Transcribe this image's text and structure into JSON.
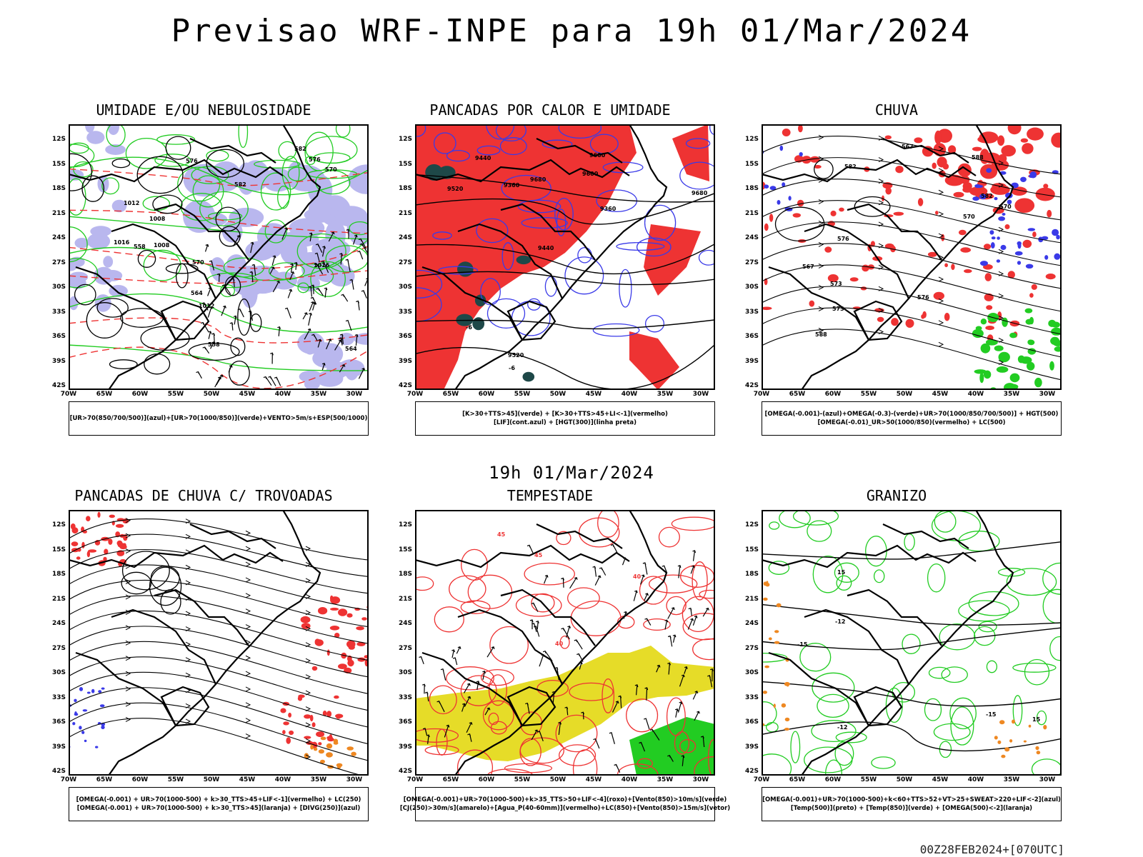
{
  "title": "Previsao WRF-INPE  para 19h 01/Mar/2024",
  "subtitle": "19h 01/Mar/2024",
  "footer": "00Z28FEB2024+[070UTC]",
  "axes": {
    "lat": [
      "12S",
      "15S",
      "18S",
      "21S",
      "24S",
      "27S",
      "30S",
      "33S",
      "36S",
      "39S",
      "42S"
    ],
    "lon": [
      "70W",
      "65W",
      "60W",
      "55W",
      "50W",
      "45W",
      "40W",
      "35W",
      "30W"
    ]
  },
  "colors": {
    "blue": "#3a3ae8",
    "lavender": "#b9b7ee",
    "green": "#22cc22",
    "red": "#ee3333",
    "yellow": "#e6dc28",
    "orange": "#ee8822",
    "dark": "#1e4848",
    "black": "#000000"
  },
  "panels": [
    {
      "title": "UMIDADE E/OU NEBULOSIDADE",
      "legend": [
        "[UR>70(850/700/500)](azul)+[UR>70(1000/850)](verde)+VENTO>5m/s+ESP(500/1000)"
      ],
      "labels": [
        "1008",
        "1012",
        "576",
        "582",
        "1016",
        "570",
        "564",
        "558"
      ]
    },
    {
      "title": "PANCADAS POR CALOR E UMIDADE",
      "legend": [
        "[K>30+TTS>45](verde) + [K>30+TTS>45+LI<-1](vermelho)",
        "[LIF](cont.azul) + [HGT(300)](linha preta)"
      ],
      "labels": [
        "9600",
        "9680",
        "9520",
        "9440",
        "9360",
        "-6"
      ]
    },
    {
      "title": "CHUVA",
      "legend": [
        "[OMEGA(-0.001)-(azul)+OMEGA(-0.3)-(verde)+UR>70(1000/850/700/500)] + HGT(500)",
        "[OMEGA(-0.01)_UR>50(1000/850)(vermelho) + LC(500)"
      ],
      "labels": [
        "588",
        "582",
        "576",
        "573",
        "570",
        "567"
      ]
    },
    {
      "title": "PANCADAS DE CHUVA C/ TROVOADAS",
      "legend": [
        "[OMEGA(-0.001) + UR>70(1000-500) + k>30_TTS>45+LIF<-1](vermelho) + LC(250)",
        "[OMEGA(-0.001) + UR>70(1000-500) + k>30_TTS>45](laranja) + [DIVG(250)](azul)"
      ],
      "labels": []
    },
    {
      "title": "TEMPESTADE",
      "legend": [
        "[OMEGA(-0.001)+UR>70(1000-500)+k>35_TTS>50+LIF<-4](roxo)+[Vento(850)>10m/s](verde)",
        "[CJ(250)>30m/s](amarelo)+[Agua_P(40-60mm)](vermelho)+LC(850)+[Vento(850)>15m/s](vetor)"
      ],
      "labels": [
        "40",
        "45"
      ]
    },
    {
      "title": "GRANIZO",
      "legend": [
        "[OMEGA(-0.001)+UR>70(1000-500)+k<60+TTS>52+VT>25+SWEAT>220+LIF<-2](azul)",
        "[Temp(500)](preto) + [Temp(850)](verde) + [OMEGA(500)<-2](laranja)"
      ],
      "labels": [
        "-12",
        "-15",
        "15"
      ]
    }
  ]
}
